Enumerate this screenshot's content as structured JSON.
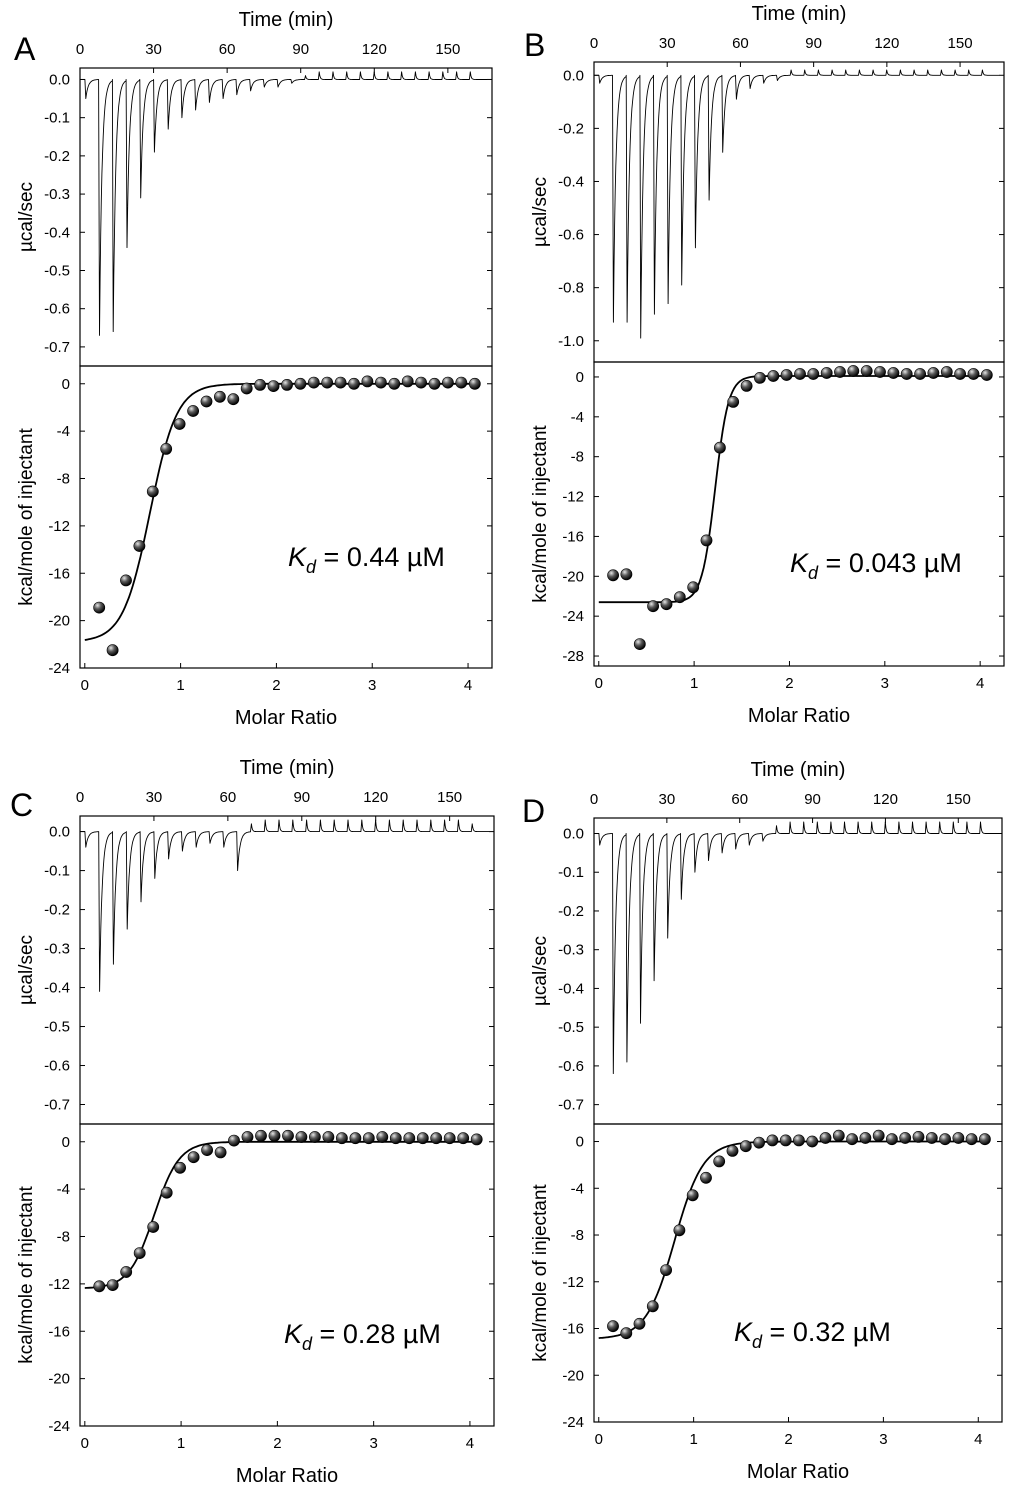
{
  "figure": {
    "panels": [
      {
        "letter": "A",
        "kd_label": "0.44 µM",
        "colors": {
          "ink": "#000000"
        },
        "chart_data": [
          {
            "type": "line",
            "title": "",
            "xlabel": "Time (min)",
            "ylabel": "µcal/sec",
            "xlim": [
              0,
              168
            ],
            "ylim": [
              -0.75,
              0.03
            ],
            "xticks": [
              0,
              30,
              60,
              90,
              120,
              150
            ],
            "yticks": [
              0.0,
              -0.1,
              -0.2,
              -0.3,
              -0.4,
              -0.5,
              -0.6,
              -0.7
            ],
            "ytick_labels": [
              "0.0",
              "-0.1",
              "-0.2",
              "-0.3",
              "-0.4",
              "-0.5",
              "-0.6",
              "-0.7"
            ],
            "injection_times": [
              2,
              7.6,
              13.2,
              18.8,
              24.4,
              30,
              35.6,
              41.2,
              46.8,
              52.4,
              58,
              63.6,
              69.2,
              74.8,
              80.4,
              86,
              91.6,
              97.2,
              102.8,
              108.4,
              114,
              119.6,
              125.2,
              130.8,
              136.4,
              142,
              147.6,
              153.2,
              158.8
            ],
            "peak_heights": [
              -0.05,
              -0.67,
              -0.66,
              -0.44,
              -0.31,
              -0.19,
              -0.13,
              -0.1,
              -0.08,
              -0.06,
              -0.05,
              -0.04,
              -0.03,
              -0.02,
              -0.02,
              -0.01,
              0.01,
              0.02,
              0.02,
              0.02,
              0.02,
              0.02,
              0.02,
              0.02,
              0.02,
              0.02,
              0.02,
              0.02,
              0.02
            ],
            "baseline": 0.0,
            "grid": false
          },
          {
            "type": "scatter",
            "title": "",
            "xlabel": "Molar Ratio",
            "ylabel": "kcal/mole of injectant",
            "xlim": [
              -0.05,
              4.25
            ],
            "ylim": [
              -24,
              1.5
            ],
            "xticks": [
              0,
              1,
              2,
              3,
              4
            ],
            "yticks": [
              0,
              -4,
              -8,
              -12,
              -16,
              -20,
              -24
            ],
            "x": [
              0.15,
              0.29,
              0.43,
              0.57,
              0.71,
              0.85,
              0.99,
              1.13,
              1.27,
              1.41,
              1.55,
              1.69,
              1.83,
              1.97,
              2.11,
              2.25,
              2.39,
              2.53,
              2.67,
              2.81,
              2.95,
              3.09,
              3.23,
              3.37,
              3.51,
              3.65,
              3.79,
              3.93,
              4.07
            ],
            "y": [
              -18.9,
              -22.5,
              -16.6,
              -13.7,
              -9.1,
              -5.5,
              -3.4,
              -2.3,
              -1.5,
              -1.1,
              -1.3,
              -0.4,
              -0.1,
              -0.2,
              -0.1,
              0.0,
              0.1,
              0.1,
              0.1,
              0.0,
              0.2,
              0.1,
              0.0,
              0.2,
              0.1,
              0.0,
              0.1,
              0.1,
              0.0
            ],
            "fit": {
              "name": "",
              "model": "one set of sites",
              "dH": -21.8,
              "n": 0.68,
              "w": 0.14,
              "offset": 0.0
            },
            "grid": false
          }
        ]
      },
      {
        "letter": "B",
        "kd_label": "0.043 µM",
        "colors": {
          "ink": "#000000"
        },
        "chart_data": [
          {
            "type": "line",
            "title": "",
            "xlabel": "Time (min)",
            "ylabel": "µcal/sec",
            "xlim": [
              0,
              168
            ],
            "ylim": [
              -1.08,
              0.05
            ],
            "xticks": [
              0,
              30,
              60,
              90,
              120,
              150
            ],
            "yticks": [
              0.0,
              -0.2,
              -0.4,
              -0.6,
              -0.8,
              -1.0
            ],
            "ytick_labels": [
              "0.0",
              "-0.2",
              "-0.4",
              "-0.6",
              "-0.8",
              "-1.0"
            ],
            "injection_times": [
              2,
              7.6,
              13.2,
              18.8,
              24.4,
              30,
              35.6,
              41.2,
              46.8,
              52.4,
              58,
              63.6,
              69.2,
              74.8,
              80.4,
              86,
              91.6,
              97.2,
              102.8,
              108.4,
              114,
              119.6,
              125.2,
              130.8,
              136.4,
              142,
              147.6,
              153.2,
              158.8
            ],
            "peak_heights": [
              -0.03,
              -0.93,
              -0.93,
              -0.99,
              -0.9,
              -0.86,
              -0.79,
              -0.65,
              -0.47,
              -0.29,
              -0.09,
              -0.05,
              -0.03,
              -0.02,
              0.02,
              0.02,
              0.02,
              0.02,
              0.02,
              0.02,
              0.02,
              0.02,
              0.02,
              0.02,
              0.02,
              0.02,
              0.02,
              0.02,
              0.02
            ],
            "baseline": 0.0,
            "grid": false
          },
          {
            "type": "scatter",
            "title": "",
            "xlabel": "Molar Ratio",
            "ylabel": "kcal/mole of injectant",
            "xlim": [
              -0.05,
              4.25
            ],
            "ylim": [
              -29,
              1.5
            ],
            "xticks": [
              0,
              1,
              2,
              3,
              4
            ],
            "yticks": [
              0,
              -4,
              -8,
              -12,
              -16,
              -20,
              -24,
              -28
            ],
            "x": [
              0.15,
              0.29,
              0.43,
              0.57,
              0.71,
              0.85,
              0.99,
              1.13,
              1.27,
              1.41,
              1.55,
              1.69,
              1.83,
              1.97,
              2.11,
              2.25,
              2.39,
              2.53,
              2.67,
              2.81,
              2.95,
              3.09,
              3.23,
              3.37,
              3.51,
              3.65,
              3.79,
              3.93,
              4.07
            ],
            "y": [
              -19.9,
              -19.8,
              -26.8,
              -23.0,
              -22.8,
              -22.1,
              -21.1,
              -16.4,
              -7.1,
              -2.5,
              -0.9,
              -0.1,
              0.1,
              0.2,
              0.3,
              0.3,
              0.4,
              0.5,
              0.6,
              0.6,
              0.5,
              0.4,
              0.3,
              0.3,
              0.4,
              0.5,
              0.3,
              0.3,
              0.2
            ],
            "fit": {
              "name": "",
              "model": "one set of sites",
              "dH": -22.7,
              "n": 1.22,
              "w": 0.07,
              "offset": 0.1
            },
            "grid": false
          }
        ]
      },
      {
        "letter": "C",
        "kd_label": "0.28 µM",
        "colors": {
          "ink": "#000000"
        },
        "chart_data": [
          {
            "type": "line",
            "title": "",
            "xlabel": "Time (min)",
            "ylabel": "µcal/sec",
            "xlim": [
              0,
              168
            ],
            "ylim": [
              -0.75,
              0.04
            ],
            "xticks": [
              0,
              30,
              60,
              90,
              120,
              150
            ],
            "yticks": [
              0.0,
              -0.1,
              -0.2,
              -0.3,
              -0.4,
              -0.5,
              -0.6,
              -0.7
            ],
            "ytick_labels": [
              "0.0",
              "-0.1",
              "-0.2",
              "-0.3",
              "-0.4",
              "-0.5",
              "-0.6",
              "-0.7"
            ],
            "injection_times": [
              2,
              7.6,
              13.2,
              18.8,
              24.4,
              30,
              35.6,
              41.2,
              46.8,
              52.4,
              58,
              63.6,
              69.2,
              74.8,
              80.4,
              86,
              91.6,
              97.2,
              102.8,
              108.4,
              114,
              119.6,
              125.2,
              130.8,
              136.4,
              142,
              147.6,
              153.2,
              158.8
            ],
            "peak_heights": [
              -0.04,
              -0.41,
              -0.34,
              -0.25,
              -0.18,
              -0.12,
              -0.07,
              -0.05,
              -0.04,
              -0.03,
              -0.04,
              -0.1,
              0.02,
              0.03,
              0.03,
              0.03,
              0.03,
              0.03,
              0.03,
              0.03,
              0.03,
              0.03,
              0.03,
              0.03,
              0.03,
              0.03,
              0.03,
              0.03,
              0.02
            ],
            "baseline": 0.0,
            "grid": false
          },
          {
            "type": "scatter",
            "title": "",
            "xlabel": "Molar Ratio",
            "ylabel": "kcal/mole of injectant",
            "xlim": [
              -0.05,
              4.25
            ],
            "ylim": [
              -24,
              1.5
            ],
            "xticks": [
              0,
              1,
              2,
              3,
              4
            ],
            "yticks": [
              0,
              -4,
              -8,
              -12,
              -16,
              -20,
              -24
            ],
            "x": [
              0.15,
              0.29,
              0.43,
              0.57,
              0.71,
              0.85,
              0.99,
              1.13,
              1.27,
              1.41,
              1.55,
              1.69,
              1.83,
              1.97,
              2.11,
              2.25,
              2.39,
              2.53,
              2.67,
              2.81,
              2.95,
              3.09,
              3.23,
              3.37,
              3.51,
              3.65,
              3.79,
              3.93,
              4.07
            ],
            "y": [
              -12.2,
              -12.1,
              -11.0,
              -9.4,
              -7.2,
              -4.3,
              -2.2,
              -1.3,
              -0.7,
              -0.9,
              0.1,
              0.4,
              0.5,
              0.5,
              0.5,
              0.4,
              0.4,
              0.4,
              0.3,
              0.3,
              0.3,
              0.4,
              0.3,
              0.3,
              0.3,
              0.3,
              0.3,
              0.3,
              0.2
            ],
            "fit": {
              "name": "",
              "model": "one set of sites",
              "dH": -12.4,
              "n": 0.72,
              "w": 0.13,
              "offset": 0.0
            },
            "grid": false
          }
        ]
      },
      {
        "letter": "D",
        "kd_label": "0.32 µM",
        "colors": {
          "ink": "#000000"
        },
        "chart_data": [
          {
            "type": "line",
            "title": "",
            "xlabel": "Time (min)",
            "ylabel": "µcal/sec",
            "xlim": [
              0,
              168
            ],
            "ylim": [
              -0.75,
              0.04
            ],
            "xticks": [
              0,
              30,
              60,
              90,
              120,
              150
            ],
            "yticks": [
              0.0,
              -0.1,
              -0.2,
              -0.3,
              -0.4,
              -0.5,
              -0.6,
              -0.7
            ],
            "ytick_labels": [
              "0.0",
              "-0.1",
              "-0.2",
              "-0.3",
              "-0.4",
              "-0.5",
              "-0.6",
              "-0.7"
            ],
            "injection_times": [
              2,
              7.6,
              13.2,
              18.8,
              24.4,
              30,
              35.6,
              41.2,
              46.8,
              52.4,
              58,
              63.6,
              69.2,
              74.8,
              80.4,
              86,
              91.6,
              97.2,
              102.8,
              108.4,
              114,
              119.6,
              125.2,
              130.8,
              136.4,
              142,
              147.6,
              153.2,
              158.8
            ],
            "peak_heights": [
              -0.03,
              -0.62,
              -0.59,
              -0.49,
              -0.38,
              -0.27,
              -0.17,
              -0.1,
              -0.07,
              -0.05,
              -0.04,
              -0.03,
              -0.02,
              0.02,
              0.03,
              0.03,
              0.03,
              0.03,
              0.03,
              0.03,
              0.03,
              0.03,
              0.03,
              0.03,
              0.03,
              0.03,
              0.03,
              0.03,
              0.03
            ],
            "baseline": 0.0,
            "grid": false
          },
          {
            "type": "scatter",
            "title": "",
            "xlabel": "Molar Ratio",
            "ylabel": "kcal/mole of injectant",
            "xlim": [
              -0.05,
              4.25
            ],
            "ylim": [
              -24,
              1.5
            ],
            "xticks": [
              0,
              1,
              2,
              3,
              4
            ],
            "yticks": [
              0,
              -4,
              -8,
              -12,
              -16,
              -20,
              -24
            ],
            "x": [
              0.15,
              0.29,
              0.43,
              0.57,
              0.71,
              0.85,
              0.99,
              1.13,
              1.27,
              1.41,
              1.55,
              1.69,
              1.83,
              1.97,
              2.11,
              2.25,
              2.39,
              2.53,
              2.67,
              2.81,
              2.95,
              3.09,
              3.23,
              3.37,
              3.51,
              3.65,
              3.79,
              3.93,
              4.07
            ],
            "y": [
              -15.8,
              -16.4,
              -15.6,
              -14.1,
              -11.0,
              -7.6,
              -4.6,
              -3.1,
              -1.7,
              -0.8,
              -0.4,
              -0.1,
              0.1,
              0.1,
              0.1,
              0.0,
              0.3,
              0.5,
              0.2,
              0.3,
              0.5,
              0.2,
              0.3,
              0.4,
              0.3,
              0.2,
              0.3,
              0.2,
              0.2
            ],
            "fit": {
              "name": "",
              "model": "one set of sites",
              "dH": -16.9,
              "n": 0.8,
              "w": 0.15,
              "offset": 0.0
            },
            "grid": false
          }
        ]
      }
    ]
  }
}
